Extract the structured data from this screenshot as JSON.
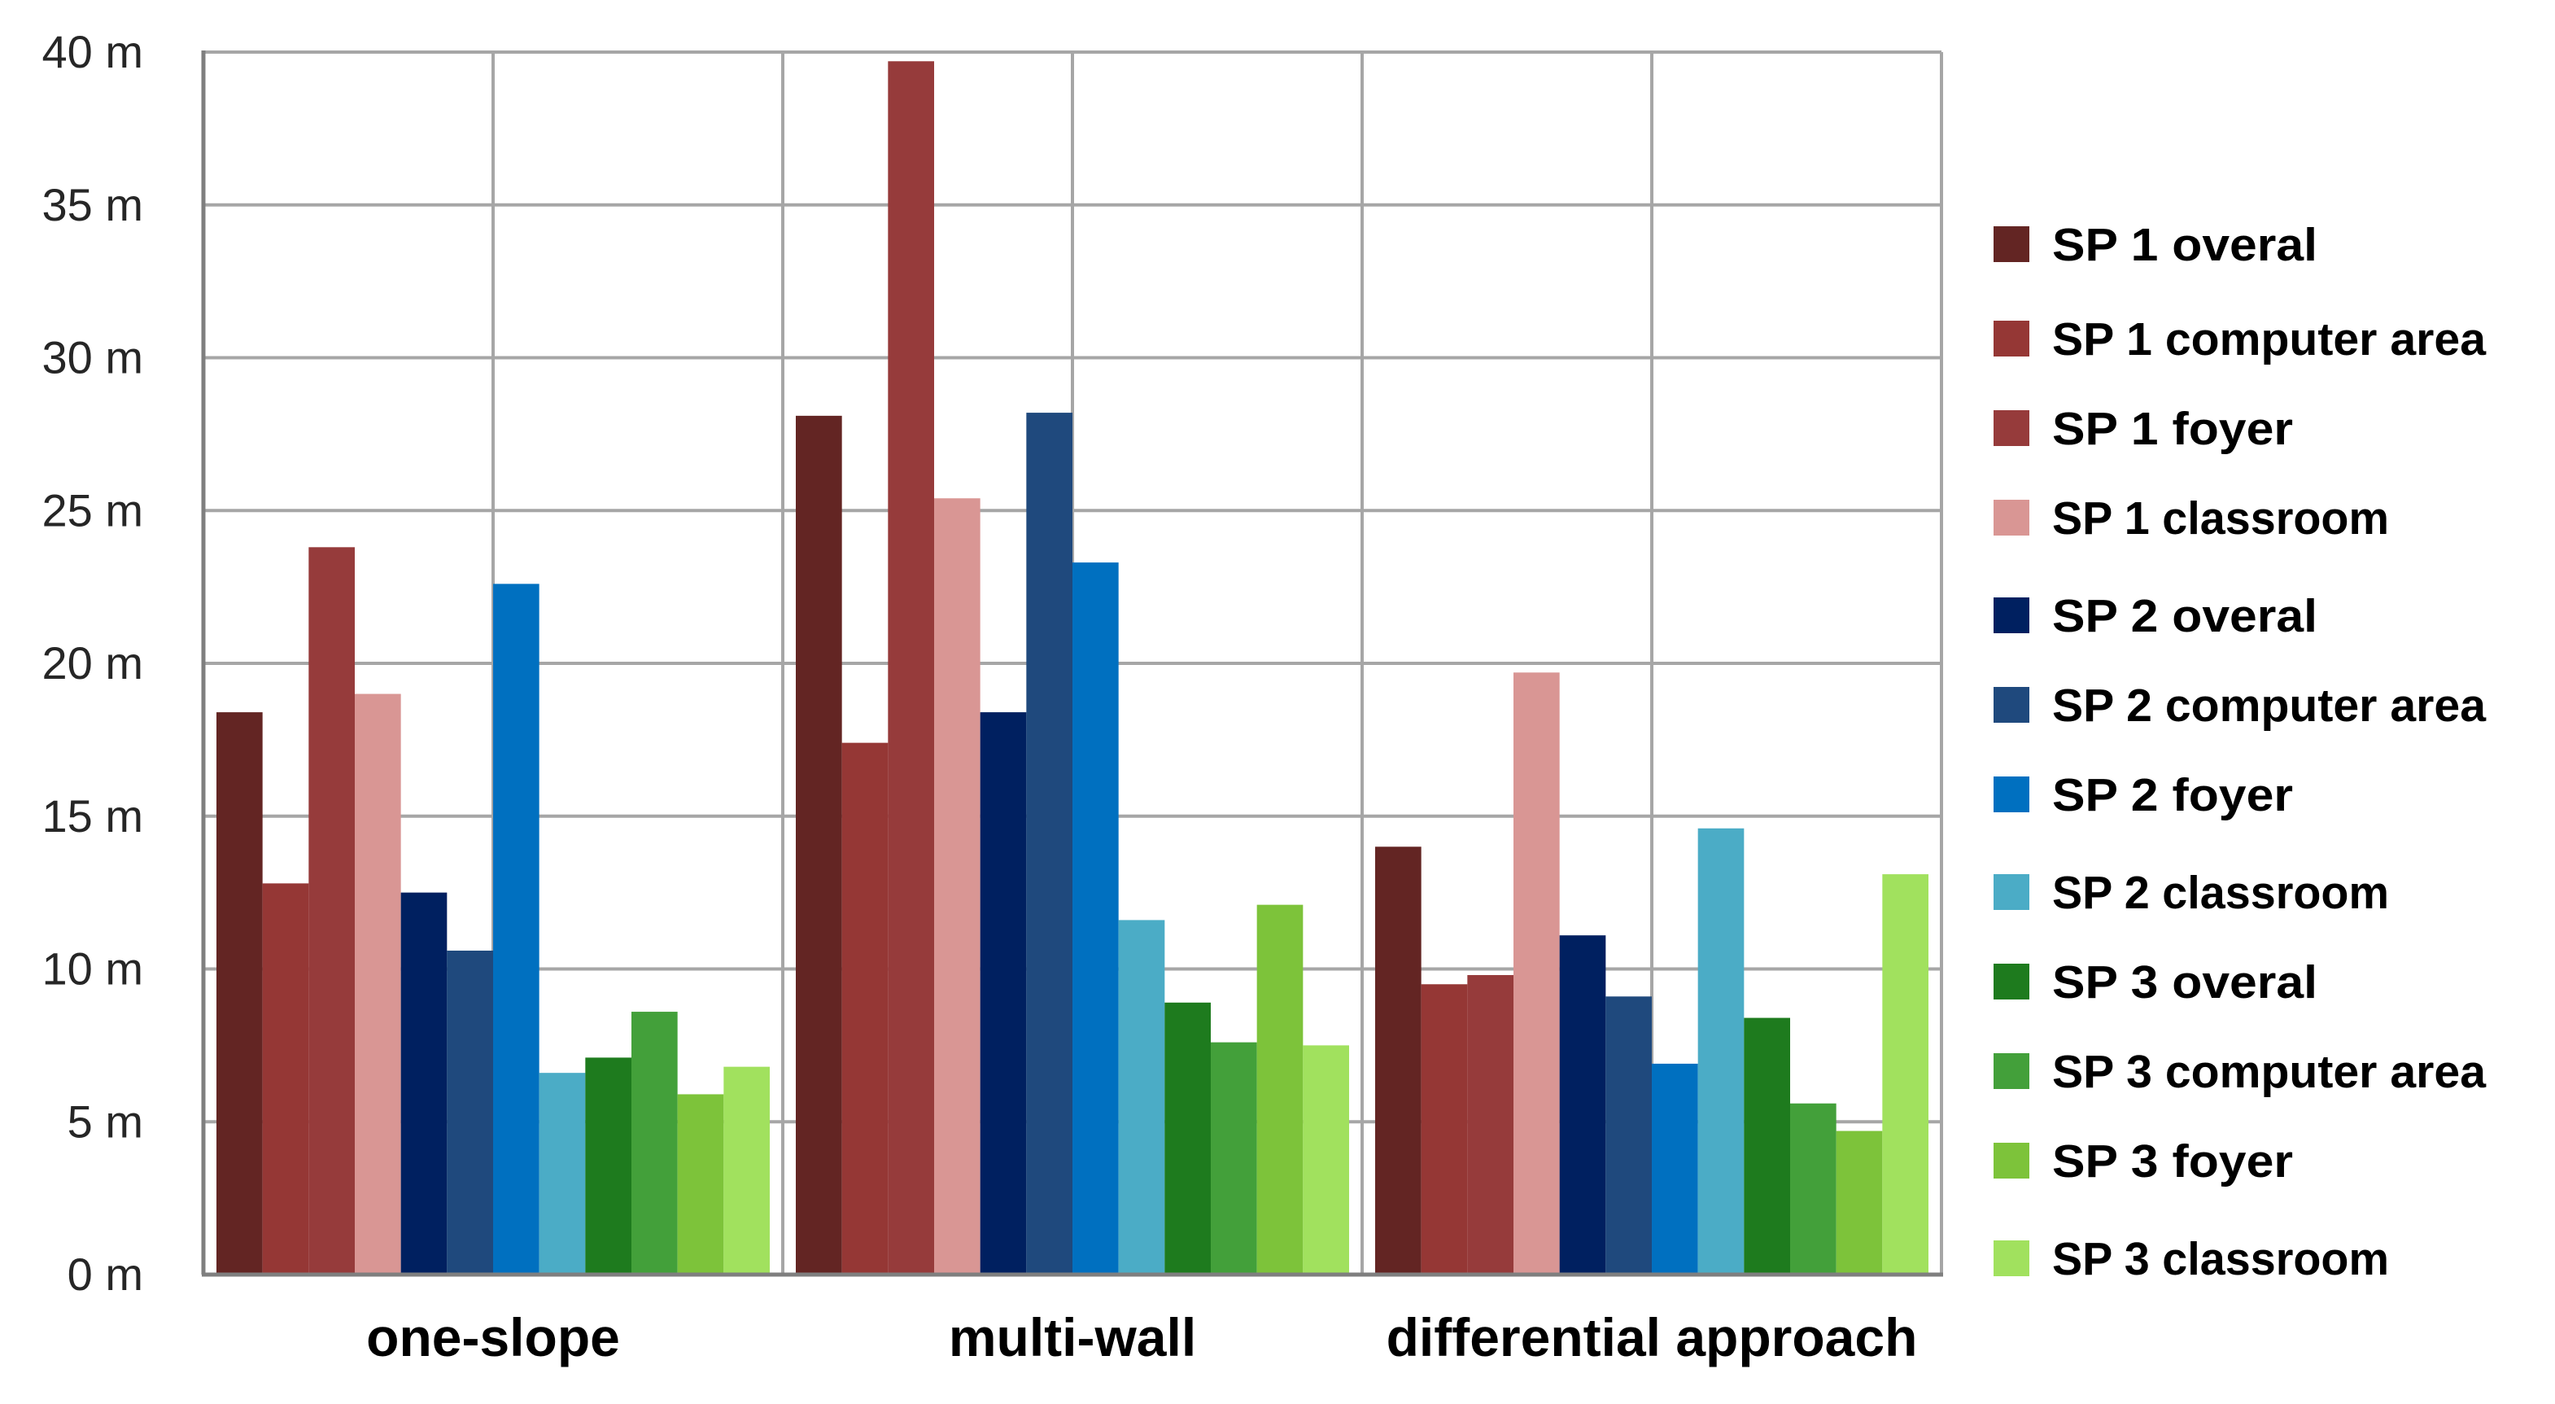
{
  "chart_data": {
    "type": "bar",
    "title": "",
    "xlabel": "",
    "ylabel": "",
    "ylim": [
      0,
      40
    ],
    "y_tick_values": [
      0,
      5,
      10,
      15,
      20,
      25,
      30,
      35,
      40
    ],
    "y_tick_labels": [
      "0 m",
      "5 m",
      "10 m",
      "15 m",
      "20 m",
      "25 m",
      "30 m",
      "35 m",
      "40 m"
    ],
    "grid": true,
    "legend_position": "right",
    "categories": [
      "one-slope",
      "multi-wall",
      "differential approach"
    ],
    "series": [
      {
        "name": "SP 1 overal",
        "color": "#632523",
        "values": [
          18.4,
          28.1,
          14.0
        ]
      },
      {
        "name": "SP 1 computer area",
        "color": "#953735",
        "values": [
          12.8,
          17.4,
          9.5
        ]
      },
      {
        "name": "SP 1 foyer",
        "color": "#963B3B",
        "values": [
          23.8,
          39.7,
          9.8
        ]
      },
      {
        "name": "SP 1 classroom",
        "color": "#D99694",
        "values": [
          19.0,
          25.4,
          19.7
        ]
      },
      {
        "name": "SP 2 overal",
        "color": "#002060",
        "values": [
          12.5,
          18.4,
          11.1
        ]
      },
      {
        "name": "SP 2 computer area",
        "color": "#1F497D",
        "values": [
          10.6,
          28.2,
          9.1
        ]
      },
      {
        "name": "SP 2 foyer",
        "color": "#0070C0",
        "values": [
          22.6,
          23.3,
          6.9
        ]
      },
      {
        "name": "SP 2 classroom",
        "color": "#4BACC6",
        "values": [
          6.6,
          11.6,
          14.6
        ]
      },
      {
        "name": "SP 3 overal",
        "color": "#1E7B1E",
        "values": [
          7.1,
          8.9,
          8.4
        ]
      },
      {
        "name": "SP 3 computer area",
        "color": "#43A03A",
        "values": [
          8.6,
          7.6,
          5.6
        ]
      },
      {
        "name": "SP 3 foyer",
        "color": "#7DC33A",
        "values": [
          5.9,
          12.1,
          4.7
        ]
      },
      {
        "name": "SP 3 classroom",
        "color": "#A1E15E",
        "values": [
          6.8,
          7.5,
          13.1
        ]
      }
    ]
  }
}
